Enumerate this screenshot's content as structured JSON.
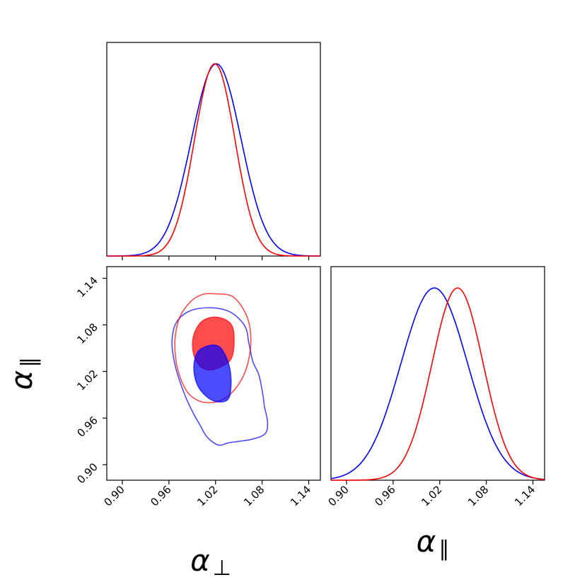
{
  "chart_data": {
    "type": "corner",
    "series": [
      {
        "name": "blue",
        "color": "#0000ff",
        "fill": "#0000ff",
        "alpha_perp": {
          "mean": 1.021,
          "sigma": 0.032
        },
        "alpha_par": {
          "mean": 1.013,
          "sigma": 0.043
        }
      },
      {
        "name": "red",
        "color": "#ff0000",
        "fill": "#ff0000",
        "alpha_perp": {
          "mean": 1.019,
          "sigma": 0.026
        },
        "alpha_par": {
          "mean": 1.043,
          "sigma": 0.033
        }
      }
    ],
    "axes": {
      "alpha_perp": {
        "label_symbol": "α",
        "label_sub": "⊥",
        "range": [
          0.88,
          1.155
        ],
        "ticks": [
          0.9,
          0.96,
          1.02,
          1.08,
          1.14
        ],
        "tick_labels": [
          "0.90",
          "0.96",
          "1.02",
          "1.08",
          "1.14"
        ]
      },
      "alpha_par": {
        "label_symbol": "α",
        "label_sub": "∥",
        "range": [
          0.88,
          1.155
        ],
        "ticks": [
          0.9,
          0.96,
          1.02,
          1.08,
          1.14
        ],
        "tick_labels": [
          "0.90",
          "0.96",
          "1.02",
          "1.08",
          "1.14"
        ]
      }
    },
    "contours": {
      "blue": {
        "inner": [
          [
            1.023,
            1.053
          ],
          [
            1.031,
            1.044
          ],
          [
            1.038,
            1.026
          ],
          [
            1.04,
            1.002
          ],
          [
            1.036,
            0.984
          ],
          [
            1.022,
            0.981
          ],
          [
            1.008,
            0.988
          ],
          [
            0.996,
            1.004
          ],
          [
            0.992,
            1.026
          ],
          [
            0.997,
            1.045
          ],
          [
            1.01,
            1.053
          ]
        ],
        "outer": [
          [
            1.015,
            1.102
          ],
          [
            1.04,
            1.096
          ],
          [
            1.058,
            1.078
          ],
          [
            1.063,
            1.056
          ],
          [
            1.068,
            1.033
          ],
          [
            1.076,
            1.015
          ],
          [
            1.081,
            0.99
          ],
          [
            1.083,
            0.975
          ],
          [
            1.087,
            0.955
          ],
          [
            1.084,
            0.94
          ],
          [
            1.068,
            0.933
          ],
          [
            1.05,
            0.93
          ],
          [
            1.036,
            0.928
          ],
          [
            1.026,
            0.925
          ],
          [
            1.018,
            0.928
          ],
          [
            1.008,
            0.937
          ],
          [
            1.0,
            0.951
          ],
          [
            0.991,
            0.967
          ],
          [
            0.98,
            0.991
          ],
          [
            0.969,
            1.024
          ],
          [
            0.964,
            1.055
          ],
          [
            0.969,
            1.082
          ],
          [
            0.987,
            1.098
          ]
        ],
        "fill_opacity": 0.7,
        "outer_fill_opacity": 0.0
      },
      "red": {
        "inner": [
          [
            1.022,
            1.09
          ],
          [
            1.04,
            1.081
          ],
          [
            1.044,
            1.06
          ],
          [
            1.04,
            1.036
          ],
          [
            1.025,
            1.025
          ],
          [
            1.01,
            1.022
          ],
          [
            0.998,
            1.029
          ],
          [
            0.991,
            1.046
          ],
          [
            0.992,
            1.067
          ],
          [
            1.003,
            1.085
          ]
        ],
        "outer": [
          [
            1.019,
            1.12
          ],
          [
            1.041,
            1.117
          ],
          [
            1.056,
            1.1
          ],
          [
            1.064,
            1.078
          ],
          [
            1.065,
            1.05
          ],
          [
            1.059,
            1.022
          ],
          [
            1.048,
            1.001
          ],
          [
            1.033,
            0.986
          ],
          [
            1.016,
            0.98
          ],
          [
            0.999,
            0.982
          ],
          [
            0.985,
            0.992
          ],
          [
            0.975,
            1.011
          ],
          [
            0.969,
            1.035
          ],
          [
            0.968,
            1.063
          ],
          [
            0.974,
            1.09
          ],
          [
            0.988,
            1.11
          ],
          [
            1.003,
            1.119
          ]
        ],
        "fill_opacity": 0.7,
        "outer_fill_opacity": 0.0
      }
    },
    "grid": false
  }
}
